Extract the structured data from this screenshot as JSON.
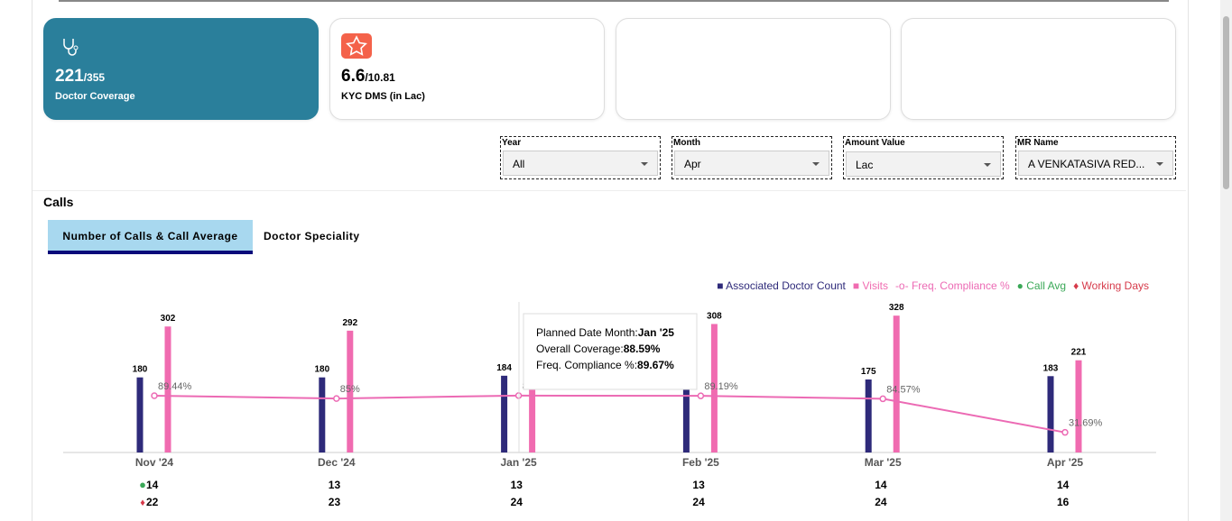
{
  "cards": [
    {
      "value": "221",
      "total": "/355",
      "label": "Doctor Coverage"
    },
    {
      "value": "6.6",
      "total": "/10.81",
      "label": "KYC DMS (in Lac)"
    }
  ],
  "filters": [
    {
      "label": "Year",
      "value": "All"
    },
    {
      "label": "Month",
      "value": "Apr"
    },
    {
      "label": "Amount Value",
      "value": "Lac"
    },
    {
      "label": "MR Name",
      "value": "A VENKATASIVA RED..."
    }
  ],
  "section_title": "Calls",
  "tabs": [
    "Number of Calls & Call Average",
    "Doctor Speciality"
  ],
  "chart_data": {
    "type": "bar",
    "categories": [
      "Nov '24",
      "Dec '24",
      "Jan '25",
      "Feb '25",
      "Mar '25",
      "Apr '25"
    ],
    "ylim": [
      0,
      350
    ],
    "y2lim": [
      0,
      230
    ],
    "legend": "top-right",
    "series": [
      {
        "name": "Associated Doctor Count",
        "color": "#2e2a7a",
        "values": [
          180,
          180,
          184,
          182,
          175,
          183
        ]
      },
      {
        "name": "Visits",
        "color": "#f06bb0",
        "values": [
          302,
          292,
          300,
          308,
          328,
          221
        ]
      },
      {
        "name": "Freq. Compliance %",
        "color": "#ec6ab4",
        "axis": "y2",
        "values": [
          89.44,
          85,
          89.67,
          89.19,
          84.57,
          31.69
        ],
        "value_labels": [
          "89.44%",
          "85%",
          "89.67%",
          "89.19%",
          "84.57%",
          "31.69%"
        ]
      },
      {
        "name": "Call Avg",
        "color": "#3aa857",
        "values": [
          14,
          13,
          13,
          13,
          14,
          14
        ]
      },
      {
        "name": "Working Days",
        "color": "#d63a4a",
        "values": [
          22,
          23,
          24,
          24,
          24,
          16
        ]
      }
    ],
    "tooltip": {
      "lines": [
        {
          "label": "Planned Date Month:",
          "value": "Jan '25"
        },
        {
          "label": "Overall Coverage:",
          "value": "88.59%"
        },
        {
          "label": "Freq. Compliance %:",
          "value": "89.67%"
        }
      ]
    }
  }
}
